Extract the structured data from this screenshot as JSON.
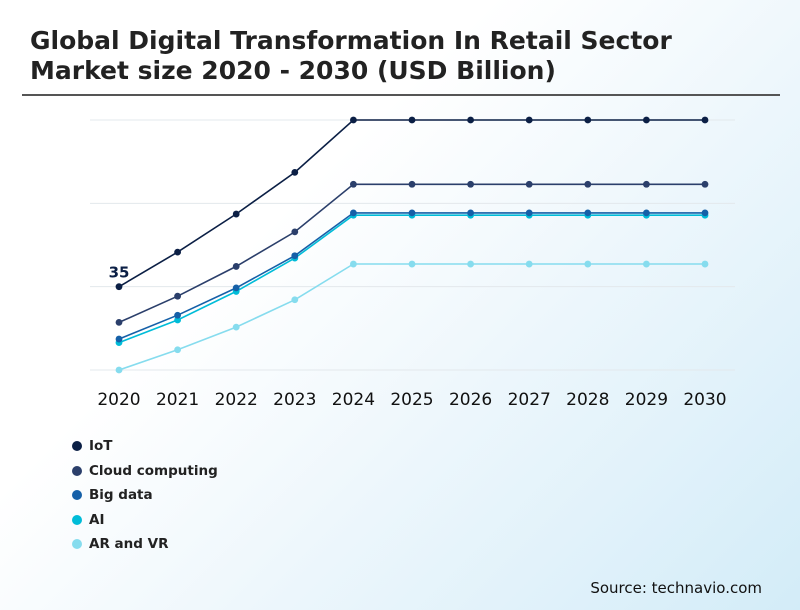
{
  "title": "Global Digital Transformation In Retail Sector Market size 2020 - 2030 (USD Billion)",
  "source": "Source: technavio.com",
  "chart_data": {
    "type": "line",
    "title": "Global Digital Transformation In Retail Sector Market size 2020 - 2030 (USD Billion)",
    "xlabel": "",
    "ylabel": "",
    "categories": [
      "2020",
      "2021",
      "2022",
      "2023",
      "2024",
      "2025",
      "2026",
      "2027",
      "2028",
      "2029",
      "2030"
    ],
    "ylim": [
      0,
      105
    ],
    "grid": true,
    "legend_position": "bottom-left",
    "annotations": [
      {
        "series": "IoT",
        "category": "2020",
        "text": "35"
      }
    ],
    "series": [
      {
        "name": "IoT",
        "color": "#0b1f45",
        "values": [
          35,
          49.5,
          65.5,
          83,
          105,
          105,
          105,
          105,
          105,
          105,
          105
        ]
      },
      {
        "name": "Cloud computing",
        "color": "#2b3f6b",
        "values": [
          20,
          31,
          43.5,
          58,
          78,
          78,
          78,
          78,
          78,
          78,
          78
        ]
      },
      {
        "name": "Big data",
        "color": "#1560a8",
        "values": [
          13,
          23,
          34.5,
          48,
          66,
          66,
          66,
          66,
          66,
          66,
          66
        ]
      },
      {
        "name": "AI",
        "color": "#00bcd8",
        "values": [
          11.5,
          21,
          33,
          47,
          65,
          65,
          65,
          65,
          65,
          65,
          65
        ]
      },
      {
        "name": "AR and VR",
        "color": "#86dcee",
        "values": [
          0,
          8.5,
          18,
          29.5,
          44.5,
          44.5,
          44.5,
          44.5,
          44.5,
          44.5,
          44.5
        ]
      }
    ]
  }
}
